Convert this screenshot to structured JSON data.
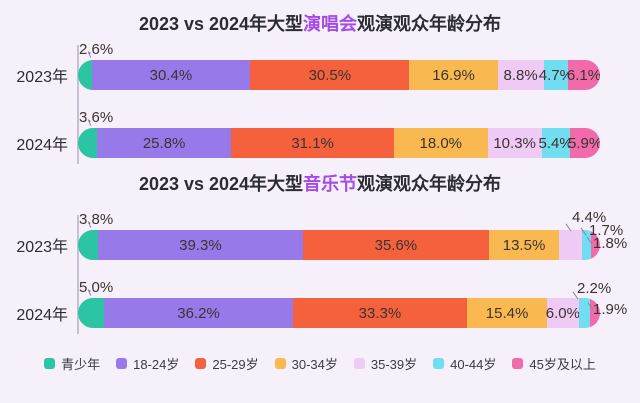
{
  "colors": {
    "background": "#F6F0FA",
    "title_text": "#2C2C33",
    "title_highlight": "#A44BE5",
    "axis_line": "#C7C0D1",
    "value_text": "#3B3430",
    "segments": [
      "#2BC5A3",
      "#9879EA",
      "#F5613D",
      "#F9B950",
      "#EECAF4",
      "#70DDF0",
      "#F16BAB"
    ]
  },
  "value_suffix": "%",
  "legend": {
    "items": [
      "青少年",
      "18-24岁",
      "25-29岁",
      "30-34岁",
      "35-39岁",
      "40-44岁",
      "45岁及以上"
    ]
  },
  "chart_data": [
    {
      "type": "bar",
      "orientation": "horizontal",
      "stacked": true,
      "title": "2023 vs 2024年大型演唱会观演观众年龄分布",
      "title_prefix": "2023 vs 2024年大型",
      "title_highlight": "演唱会",
      "title_suffix": "观演观众年龄分布",
      "unit": "%",
      "xlim": [
        0,
        100
      ],
      "grid": false,
      "legend_position": "bottom-shared",
      "categories": [
        "2023年",
        "2024年"
      ],
      "series_labels": [
        "青少年",
        "18-24岁",
        "25-29岁",
        "30-34岁",
        "35-39岁",
        "40-44岁",
        "45岁及以上"
      ],
      "rows": [
        {
          "label": "2023年",
          "values": [
            2.6,
            30.4,
            30.5,
            16.9,
            8.8,
            4.7,
            6.1
          ],
          "label_pos": [
            "above",
            "inside",
            "inside",
            "inside",
            "inside",
            "inside",
            "inside"
          ]
        },
        {
          "label": "2024年",
          "values": [
            3.6,
            25.8,
            31.1,
            18.0,
            10.3,
            5.4,
            5.9
          ],
          "label_pos": [
            "above",
            "inside",
            "inside",
            "inside",
            "inside",
            "inside",
            "inside"
          ]
        }
      ]
    },
    {
      "type": "bar",
      "orientation": "horizontal",
      "stacked": true,
      "title": "2023 vs 2024年大型音乐节观演观众年龄分布",
      "title_prefix": "2023 vs 2024年大型",
      "title_highlight": "音乐节",
      "title_suffix": "观演观众年龄分布",
      "unit": "%",
      "xlim": [
        0,
        100
      ],
      "grid": false,
      "legend_position": "bottom-shared",
      "categories": [
        "2023年",
        "2024年"
      ],
      "series_labels": [
        "青少年",
        "18-24岁",
        "25-29岁",
        "30-34岁",
        "35-39岁",
        "40-44岁",
        "45岁及以上"
      ],
      "rows": [
        {
          "label": "2023年",
          "values": [
            3.8,
            39.3,
            35.6,
            13.5,
            4.4,
            1.7,
            1.8
          ],
          "label_pos": [
            "above",
            "inside",
            "inside",
            "inside",
            "callout",
            "callout",
            "callout"
          ]
        },
        {
          "label": "2024年",
          "values": [
            5.0,
            36.2,
            33.3,
            15.4,
            6.0,
            2.2,
            1.9
          ],
          "label_pos": [
            "above",
            "inside",
            "inside",
            "inside",
            "inside",
            "callout",
            "callout"
          ]
        }
      ]
    }
  ]
}
